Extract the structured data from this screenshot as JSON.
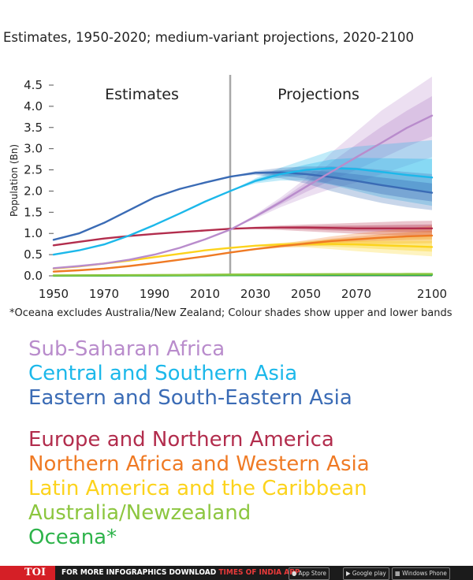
{
  "subtitle": "Estimates, 1950-2020; medium-variant projections, 2020-2100",
  "chart_data": {
    "type": "line",
    "ylabel": "Population (Bn)",
    "xlabel": "",
    "ylim": [
      0,
      4.5
    ],
    "xlim": [
      1950,
      2100
    ],
    "x_ticks": [
      1950,
      1970,
      1990,
      2010,
      2030,
      2050,
      2070,
      2100
    ],
    "y_ticks": [
      "0.0",
      "0.5",
      "1.0",
      "1.5",
      "2.0",
      "2.5",
      "3.0",
      "3.5",
      "4.0",
      "4.5"
    ],
    "divider_year": 2020,
    "annotations": [
      "Estimates",
      "Projections"
    ],
    "x": [
      1950,
      1960,
      1970,
      1980,
      1990,
      2000,
      2010,
      2020,
      2030,
      2040,
      2050,
      2060,
      2070,
      2080,
      2090,
      2100
    ],
    "series": [
      {
        "name": "Sub-Saharan Africa",
        "color": "#b98ccc",
        "values": [
          0.18,
          0.23,
          0.29,
          0.38,
          0.5,
          0.66,
          0.86,
          1.09,
          1.4,
          1.74,
          2.1,
          2.45,
          2.8,
          3.14,
          3.49,
          3.78
        ],
        "lower": [
          null,
          null,
          null,
          null,
          null,
          null,
          null,
          1.09,
          1.35,
          1.62,
          1.85,
          2.05,
          2.2,
          2.4,
          2.6,
          2.8
        ],
        "upper": [
          null,
          null,
          null,
          null,
          null,
          null,
          null,
          1.09,
          1.45,
          1.85,
          2.3,
          2.9,
          3.4,
          3.9,
          4.3,
          4.7
        ]
      },
      {
        "name": "Central and Southern Asia",
        "color": "#1cb8ea",
        "values": [
          0.5,
          0.6,
          0.74,
          0.95,
          1.2,
          1.47,
          1.75,
          2.0,
          2.24,
          2.4,
          2.5,
          2.54,
          2.52,
          2.45,
          2.38,
          2.32
        ],
        "lower": [
          null,
          null,
          null,
          null,
          null,
          null,
          null,
          2.0,
          2.18,
          2.25,
          2.25,
          2.15,
          2.0,
          1.85,
          1.75,
          1.65
        ],
        "upper": [
          null,
          null,
          null,
          null,
          null,
          null,
          null,
          2.0,
          2.3,
          2.55,
          2.75,
          2.95,
          3.05,
          3.1,
          3.15,
          3.2
        ]
      },
      {
        "name": "Eastern and South-Eastern Asia",
        "color": "#3a6bb5",
        "values": [
          0.85,
          1.0,
          1.25,
          1.55,
          1.85,
          2.05,
          2.2,
          2.34,
          2.43,
          2.44,
          2.4,
          2.33,
          2.24,
          2.14,
          2.05,
          1.96
        ],
        "lower": [
          null,
          null,
          null,
          null,
          null,
          null,
          null,
          2.34,
          2.38,
          2.3,
          2.18,
          2.0,
          1.85,
          1.72,
          1.62,
          1.55
        ],
        "upper": [
          null,
          null,
          null,
          null,
          null,
          null,
          null,
          2.34,
          2.47,
          2.55,
          2.58,
          2.58,
          2.55,
          2.5,
          2.45,
          2.4
        ]
      },
      {
        "name": "Europe and Northern America",
        "color": "#b22d4d",
        "values": [
          0.72,
          0.8,
          0.88,
          0.94,
          0.99,
          1.03,
          1.07,
          1.11,
          1.13,
          1.14,
          1.14,
          1.13,
          1.12,
          1.12,
          1.12,
          1.12
        ],
        "lower": [
          null,
          null,
          null,
          null,
          null,
          null,
          null,
          1.11,
          1.1,
          1.08,
          1.05,
          1.02,
          0.99,
          0.97,
          0.95,
          0.93
        ],
        "upper": [
          null,
          null,
          null,
          null,
          null,
          null,
          null,
          1.11,
          1.16,
          1.19,
          1.21,
          1.23,
          1.25,
          1.27,
          1.29,
          1.3
        ]
      },
      {
        "name": "Northern Africa and Western Asia",
        "color": "#ef7a24",
        "values": [
          0.1,
          0.13,
          0.17,
          0.23,
          0.3,
          0.38,
          0.46,
          0.55,
          0.63,
          0.7,
          0.76,
          0.82,
          0.86,
          0.9,
          0.93,
          0.95
        ],
        "lower": [
          null,
          null,
          null,
          null,
          null,
          null,
          null,
          0.55,
          0.61,
          0.66,
          0.69,
          0.72,
          0.74,
          0.75,
          0.76,
          0.77
        ],
        "upper": [
          null,
          null,
          null,
          null,
          null,
          null,
          null,
          0.55,
          0.65,
          0.75,
          0.84,
          0.93,
          1.0,
          1.06,
          1.12,
          1.18
        ]
      },
      {
        "name": "Latin America and the Caribbean",
        "color": "#fcd31c",
        "values": [
          0.17,
          0.22,
          0.29,
          0.36,
          0.44,
          0.52,
          0.6,
          0.66,
          0.71,
          0.74,
          0.75,
          0.75,
          0.74,
          0.72,
          0.7,
          0.68
        ],
        "lower": [
          null,
          null,
          null,
          null,
          null,
          null,
          null,
          0.66,
          0.69,
          0.69,
          0.67,
          0.63,
          0.58,
          0.54,
          0.5,
          0.46
        ],
        "upper": [
          null,
          null,
          null,
          null,
          null,
          null,
          null,
          0.66,
          0.73,
          0.78,
          0.82,
          0.86,
          0.89,
          0.92,
          0.95,
          0.97
        ]
      },
      {
        "name": "Australia/Newzealand",
        "color": "#8cc63f",
        "values": [
          0.01,
          0.013,
          0.015,
          0.018,
          0.02,
          0.023,
          0.026,
          0.03,
          0.033,
          0.036,
          0.038,
          0.04,
          0.042,
          0.043,
          0.044,
          0.045
        ],
        "lower": [
          null,
          null,
          null,
          null,
          null,
          null,
          null,
          null,
          null,
          null,
          null,
          null,
          null,
          null,
          null,
          null
        ],
        "upper": [
          null,
          null,
          null,
          null,
          null,
          null,
          null,
          null,
          null,
          null,
          null,
          null,
          null,
          null,
          null,
          null
        ]
      },
      {
        "name": "Oceana*",
        "color": "#2db34a",
        "values": [
          0.002,
          0.003,
          0.004,
          0.005,
          0.006,
          0.008,
          0.01,
          0.012,
          0.014,
          0.016,
          0.018,
          0.019,
          0.02,
          0.021,
          0.022,
          0.023
        ],
        "lower": [
          null,
          null,
          null,
          null,
          null,
          null,
          null,
          null,
          null,
          null,
          null,
          null,
          null,
          null,
          null,
          null
        ],
        "upper": [
          null,
          null,
          null,
          null,
          null,
          null,
          null,
          null,
          null,
          null,
          null,
          null,
          null,
          null,
          null,
          null
        ]
      }
    ]
  },
  "footnote": "*Oceana excludes Australia/New Zealand; Colour shades show upper and lower bands",
  "legend": [
    {
      "label": "Sub-Saharan Africa",
      "color": "#b98ccc"
    },
    {
      "label": "Central and Southern Asia",
      "color": "#1cb8ea"
    },
    {
      "label": "Eastern and South-Eastern Asia",
      "color": "#3a6bb5"
    },
    {
      "label": "Europe and Northern America",
      "color": "#b22d4d"
    },
    {
      "label": "Northern Africa and Western Asia",
      "color": "#ef7a24"
    },
    {
      "label": "Latin America and the Caribbean",
      "color": "#fcd31c"
    },
    {
      "label": "Australia/Newzealand",
      "color": "#8cc63f"
    },
    {
      "label": "Oceana*",
      "color": "#2db34a"
    }
  ],
  "footer": {
    "brand": "TOI",
    "promo_prefix": "FOR MORE  INFOGRAPHICS DOWNLOAD",
    "promo_highlight": "TIMES OF INDIA  APP",
    "badge_appstore": "App Store",
    "badge_googleplay": "Google play",
    "badge_windows": "Windows Phone"
  }
}
